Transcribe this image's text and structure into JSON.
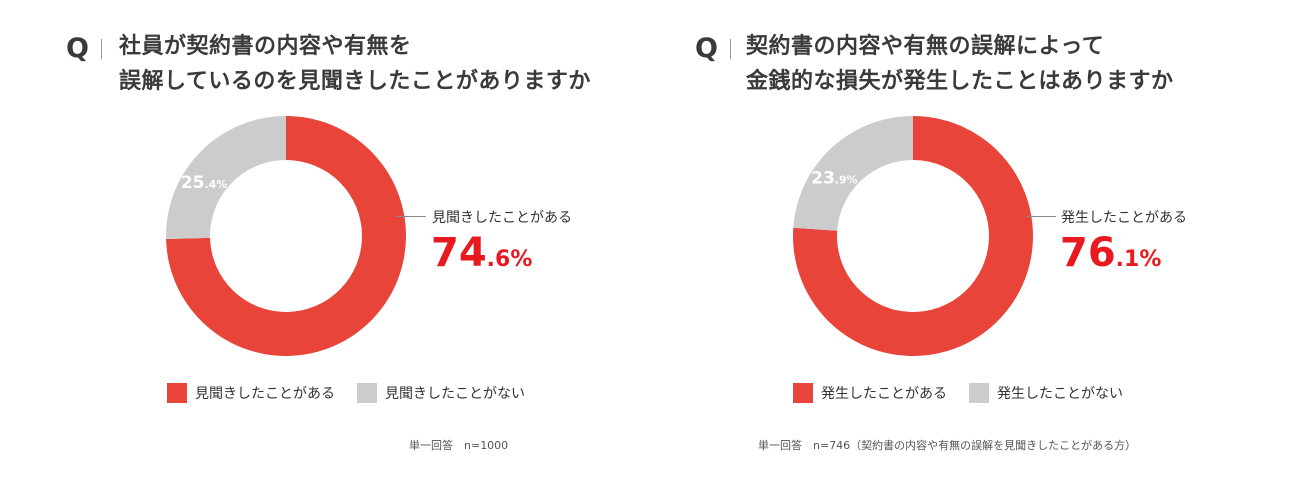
{
  "colors": {
    "accent": "#e8443a",
    "neutral": "#cccccc",
    "highlight_text": "#e8191f"
  },
  "panels": [
    {
      "q_mark": "Q",
      "question_lines": [
        "社員が契約書の内容や有無を",
        "誤解しているのを見聞きしたことがありますか"
      ],
      "callout_label": "見聞きしたことがある",
      "callout_int": "74",
      "callout_dec": ".6%",
      "slice_label_int": "25",
      "slice_label_dec": ".4%",
      "legend": [
        "見聞きしたことがある",
        "見聞きしたことがない"
      ],
      "note": "単一回答　n=1000"
    },
    {
      "q_mark": "Q",
      "question_lines": [
        "契約書の内容や有無の誤解によって",
        "金銭的な損失が発生したことはありますか"
      ],
      "callout_label": "発生したことがある",
      "callout_int": "76",
      "callout_dec": ".1%",
      "slice_label_int": "23",
      "slice_label_dec": ".9%",
      "legend": [
        "発生したことがある",
        "発生したことがない"
      ],
      "note": "単一回答　n=746（契約書の内容や有無の誤解を見聞きしたことがある方）"
    }
  ],
  "chart_data": [
    {
      "type": "pie",
      "categories": [
        "見聞きしたことがある",
        "見聞きしたことがない"
      ],
      "values": [
        74.6,
        25.4
      ],
      "colors": [
        "#e8443a",
        "#cccccc"
      ]
    },
    {
      "type": "pie",
      "categories": [
        "発生したことがある",
        "発生したことがない"
      ],
      "values": [
        76.1,
        23.9
      ],
      "colors": [
        "#e8443a",
        "#cccccc"
      ]
    }
  ]
}
